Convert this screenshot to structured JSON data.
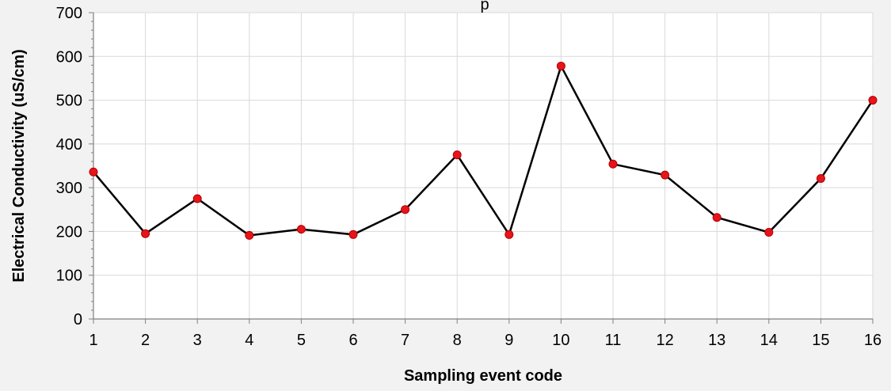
{
  "chart_data": {
    "type": "line",
    "title": "p",
    "xlabel": "Sampling event code",
    "ylabel": "Electrical Conductivity (uS/cm)",
    "x": [
      1,
      2,
      3,
      4,
      5,
      6,
      7,
      8,
      9,
      10,
      11,
      12,
      13,
      14,
      15,
      16
    ],
    "xlim": [
      1,
      16
    ],
    "ylim": [
      0,
      700
    ],
    "yticks": [
      0,
      100,
      200,
      300,
      400,
      500,
      600,
      700
    ],
    "grid": true,
    "legend": "none",
    "series": [
      {
        "values": [
          336,
          195,
          275,
          191,
          205,
          193,
          250,
          375,
          193,
          578,
          354,
          329,
          232,
          198,
          321,
          500
        ],
        "line_color": "#000000",
        "marker_color": "#e8141b"
      }
    ]
  }
}
